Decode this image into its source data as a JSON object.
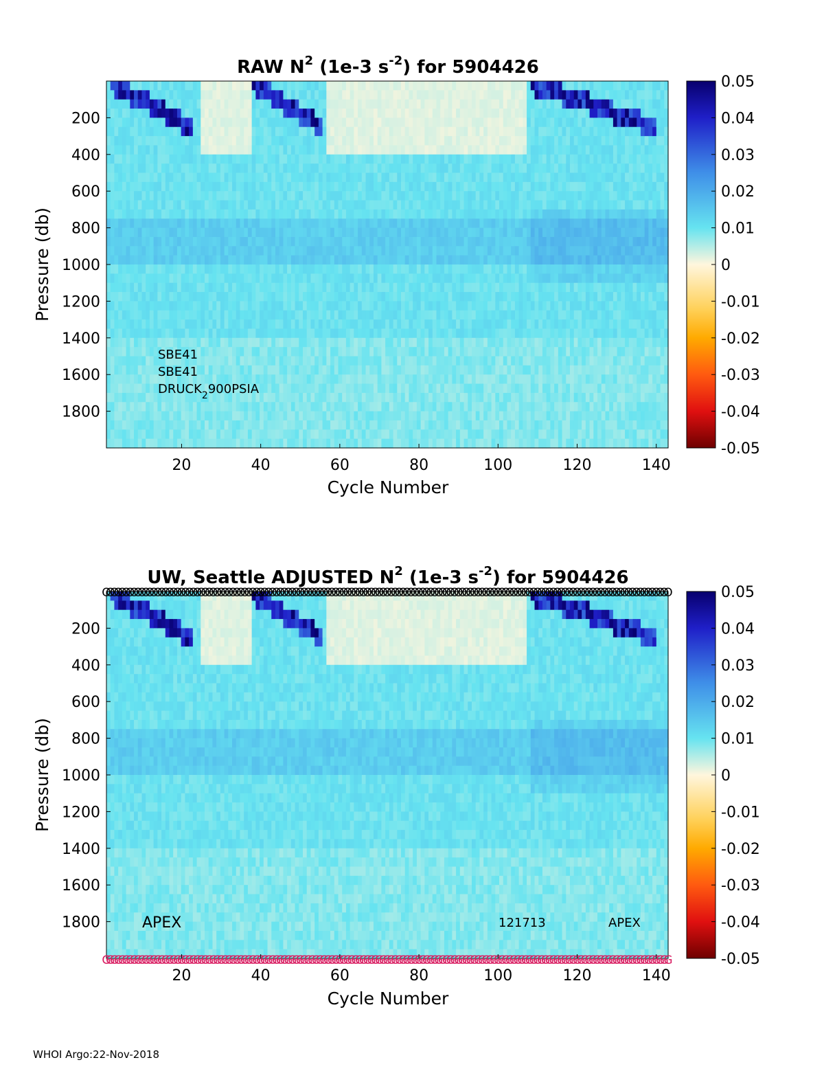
{
  "footer": "WHOI Argo:22-Nov-2018",
  "chart_data": [
    {
      "type": "heatmap",
      "title_parts": [
        "RAW N",
        "2",
        " (1e-3 s",
        "-2",
        ") for 5904426"
      ],
      "xlabel": "Cycle Number",
      "ylabel": "Pressure (db)",
      "xlim": [
        1,
        143
      ],
      "ylim": [
        2000,
        0
      ],
      "xticks": [
        20,
        40,
        60,
        80,
        100,
        120,
        140
      ],
      "yticks": [
        200,
        400,
        600,
        800,
        1000,
        1200,
        1400,
        1600,
        1800
      ],
      "colorbar": {
        "min": -0.05,
        "max": 0.05,
        "ticks": [
          "0.05",
          "0.04",
          "0.03",
          "0.02",
          "0.01",
          "0",
          "-0.01",
          "-0.02",
          "-0.03",
          "-0.04",
          "-0.05"
        ]
      },
      "annotations": [
        {
          "text": "SBE41"
        },
        {
          "text": "SBE41"
        },
        {
          "text_parts": [
            "DRUCK",
            "2",
            "900PSIA"
          ]
        }
      ]
    },
    {
      "type": "heatmap",
      "title_parts": [
        "UW, Seattle  ADJUSTED N",
        "2",
        " (1e-3 s",
        "-2",
        ") for 5904426"
      ],
      "xlabel": "Cycle Number",
      "ylabel": "Pressure (db)",
      "xlim": [
        1,
        143
      ],
      "ylim": [
        2000,
        0
      ],
      "xticks": [
        20,
        40,
        60,
        80,
        100,
        120,
        140
      ],
      "yticks": [
        200,
        400,
        600,
        800,
        1000,
        1200,
        1400,
        1600,
        1800
      ],
      "colorbar": {
        "min": -0.05,
        "max": 0.05,
        "ticks": [
          "0.05",
          "0.04",
          "0.03",
          "0.02",
          "0.01",
          "0",
          "-0.01",
          "-0.02",
          "-0.03",
          "-0.04",
          "-0.05"
        ]
      },
      "annotations": [
        {
          "text": "APEX"
        },
        {
          "text": "121713"
        },
        {
          "text": "APEX"
        }
      ],
      "qc_markers": {
        "top": "O",
        "bottom": "G"
      }
    }
  ]
}
